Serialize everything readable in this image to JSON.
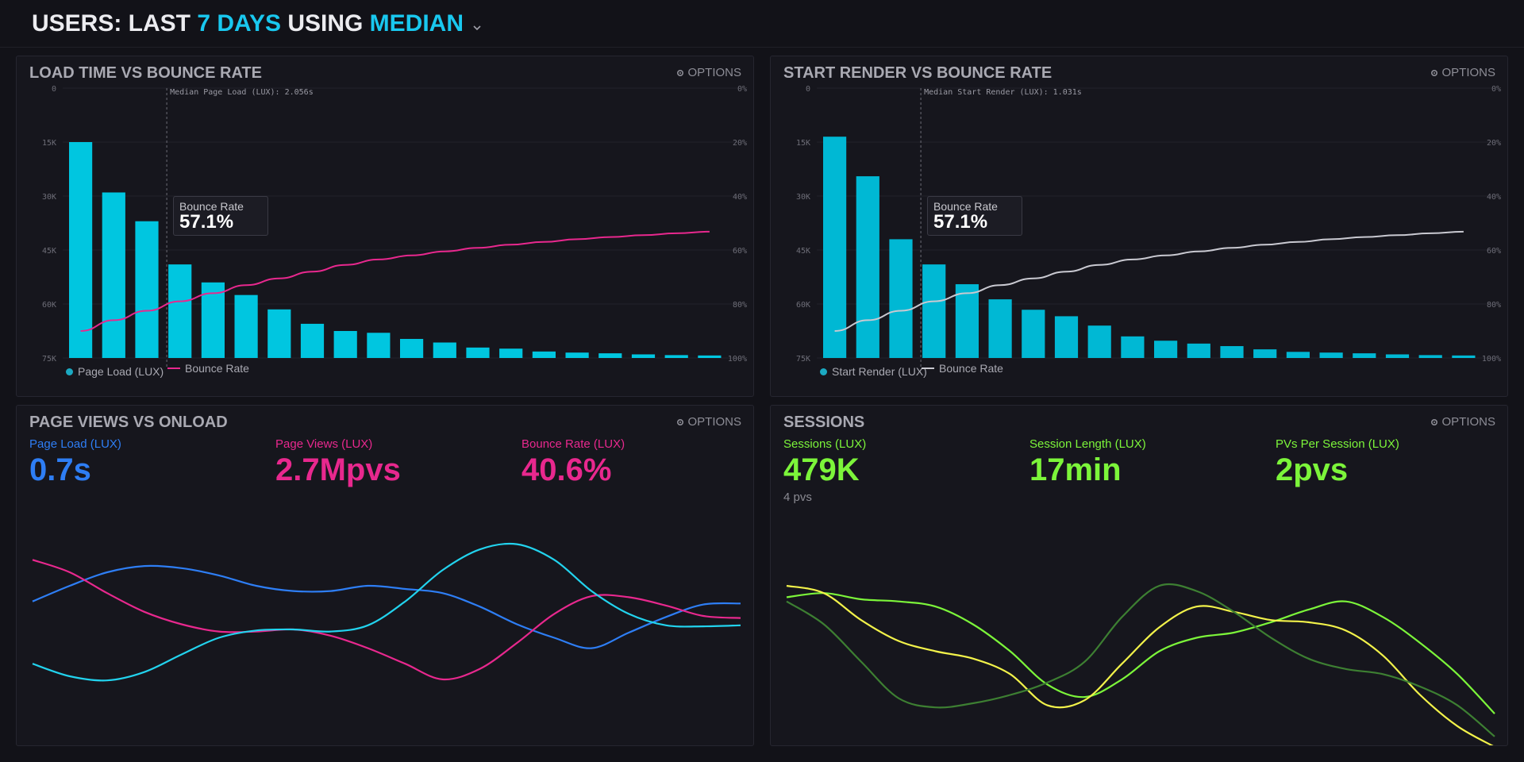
{
  "header": {
    "title_part1": "USERS: LAST ",
    "title_part2": "7 DAYS",
    "title_part3": " USING ",
    "title_part4": "MEDIAN"
  },
  "common": {
    "options_label": "OPTIONS"
  },
  "colors": {
    "accent": "#19c8ef",
    "bar": "#00c6e0",
    "pink": "#e8288e",
    "blue": "#2e7ef5",
    "cyan": "#22d3ee",
    "green": "#7cf53a",
    "yellow": "#f2f24a",
    "darkgreen": "#3d7f32",
    "grey": "#c9c9d1"
  },
  "panel1": {
    "title": "LOAD TIME VS BOUNCE RATE",
    "median_label": "Median Page Load (LUX): 2.056s",
    "tooltip_label": "Bounce Rate",
    "tooltip_value": "57.1%",
    "legend_bars": "Page Load (LUX)",
    "legend_line": "Bounce Rate",
    "chart_data": {
      "type": "bar",
      "y_left_ticks": [
        "0",
        "15K",
        "30K",
        "45K",
        "60K",
        "75K"
      ],
      "y_right_ticks": [
        "0%",
        "20%",
        "40%",
        "60%",
        "80%",
        "100%"
      ],
      "bars": [
        60000,
        46000,
        38000,
        26000,
        21000,
        17500,
        13500,
        9500,
        7500,
        7000,
        5300,
        4300,
        2900,
        2600,
        1800,
        1500,
        1300,
        1000,
        800,
        700
      ],
      "bounce_rate_pct": [
        90,
        86,
        82.5,
        79,
        76,
        73,
        70.5,
        68,
        65.5,
        63.5,
        62,
        60.5,
        59.2,
        58,
        57,
        56,
        55.2,
        54.5,
        53.8,
        53.2
      ],
      "median_bucket": 3
    }
  },
  "panel2": {
    "title": "START RENDER VS BOUNCE RATE",
    "median_label": "Median Start Render (LUX): 1.031s",
    "tooltip_label": "Bounce Rate",
    "tooltip_value": "57.1%",
    "legend_bars": "Start Render (LUX)",
    "legend_line": "Bounce Rate",
    "chart_data": {
      "type": "bar",
      "y_left_ticks": [
        "0",
        "15K",
        "30K",
        "45K",
        "60K",
        "75K"
      ],
      "y_right_ticks": [
        "0%",
        "20%",
        "40%",
        "60%",
        "80%",
        "100%"
      ],
      "bars": [
        61500,
        50500,
        33000,
        26000,
        20500,
        16300,
        13400,
        11600,
        9000,
        6000,
        4800,
        4000,
        3300,
        2400,
        1700,
        1500,
        1300,
        1000,
        800,
        700
      ],
      "bounce_rate_pct": [
        90,
        86,
        82.5,
        79,
        76,
        73,
        70.5,
        68,
        65.5,
        63.5,
        62,
        60.5,
        59.2,
        58,
        57,
        56,
        55.2,
        54.5,
        53.8,
        53.2
      ],
      "median_bucket": 3
    }
  },
  "panel3": {
    "title": "PAGE VIEWS VS ONLOAD",
    "metrics": [
      {
        "label": "Page Load (LUX)",
        "value": "0.7s",
        "color": "#2e7ef5"
      },
      {
        "label": "Page Views (LUX)",
        "value": "2.7Mpvs",
        "color": "#e8288e"
      },
      {
        "label": "Bounce Rate (LUX)",
        "value": "40.6%",
        "color": "#e8288e"
      }
    ],
    "chart_data": {
      "type": "line",
      "series": [
        {
          "values": [
            70,
            55,
            42,
            36,
            38,
            45,
            55,
            60,
            60,
            55,
            58,
            62,
            75,
            92,
            105,
            115,
            100,
            85,
            73,
            72
          ],
          "color": "#2e7ef5"
        },
        {
          "values": [
            30,
            42,
            62,
            80,
            92,
            99,
            99,
            97,
            103,
            115,
            130,
            145,
            135,
            110,
            82,
            65,
            66,
            74,
            84,
            86
          ],
          "color": "#e8288e"
        },
        {
          "values": [
            130,
            142,
            146,
            138,
            121,
            105,
            98,
            97,
            99,
            93,
            70,
            40,
            20,
            15,
            30,
            60,
            82,
            93,
            94,
            93
          ],
          "color": "#22d3ee"
        }
      ]
    }
  },
  "panel4": {
    "title": "SESSIONS",
    "metrics": [
      {
        "label": "Sessions (LUX)",
        "value": "479K",
        "sub": "4 pvs",
        "color": "#7cf53a"
      },
      {
        "label": "Session Length (LUX)",
        "value": "17min",
        "sub": "",
        "color": "#7cf53a"
      },
      {
        "label": "PVs Per Session (LUX)",
        "value": "2pvs",
        "sub": "",
        "color": "#7cf53a"
      }
    ],
    "chart_data": {
      "type": "line",
      "series": [
        {
          "values": [
            66,
            62,
            68,
            70,
            75,
            92,
            118,
            150,
            162,
            145,
            118,
            105,
            100,
            90,
            78,
            70,
            85,
            110,
            140,
            178
          ],
          "color": "#7cf53a"
        },
        {
          "values": [
            55,
            62,
            88,
            108,
            118,
            125,
            140,
            170,
            165,
            130,
            95,
            75,
            80,
            88,
            90,
            98,
            122,
            160,
            190,
            210
          ],
          "color": "#f2f24a"
        },
        {
          "values": [
            70,
            92,
            128,
            163,
            172,
            168,
            160,
            148,
            128,
            85,
            55,
            60,
            80,
            105,
            125,
            135,
            140,
            152,
            170,
            200
          ],
          "color": "#3d7f32"
        }
      ]
    }
  }
}
